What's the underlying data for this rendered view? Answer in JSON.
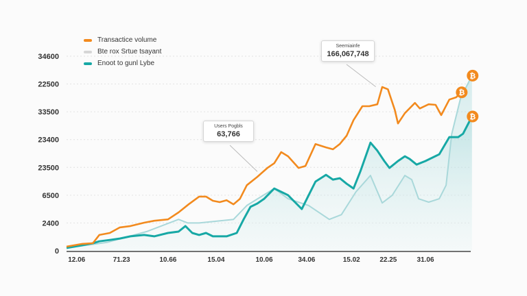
{
  "chart_data": {
    "type": "line",
    "title": "",
    "xlabel": "",
    "ylabel": "",
    "xlim": [
      0,
      100
    ],
    "ylim": [
      0,
      7
    ],
    "y_ticks": [
      {
        "level": 0,
        "label": "0"
      },
      {
        "level": 1,
        "label": "2400"
      },
      {
        "level": 2,
        "label": "6500"
      },
      {
        "level": 3,
        "label": "23500"
      },
      {
        "level": 4,
        "label": "23400"
      },
      {
        "level": 5,
        "label": "33500"
      },
      {
        "level": 6,
        "label": "22500"
      },
      {
        "level": 7,
        "label": "34600"
      }
    ],
    "x_ticks": [
      {
        "x": 2.5,
        "label": "12.06"
      },
      {
        "x": 13.6,
        "label": "71.23"
      },
      {
        "x": 25.1,
        "label": "10.66"
      },
      {
        "x": 37.0,
        "label": "15.04"
      },
      {
        "x": 48.9,
        "label": "10.06"
      },
      {
        "x": 59.4,
        "label": "34.06"
      },
      {
        "x": 70.5,
        "label": "15.02"
      },
      {
        "x": 79.6,
        "label": "22.25"
      },
      {
        "x": 88.8,
        "label": "31.06"
      }
    ],
    "grid": true,
    "legend_position": "top-left",
    "series": [
      {
        "name": "Transactice volume",
        "color": "#f28a1e",
        "points": [
          [
            0,
            0.15
          ],
          [
            3.9,
            0.25
          ],
          [
            6.5,
            0.27
          ],
          [
            8.1,
            0.57
          ],
          [
            10.7,
            0.64
          ],
          [
            13.2,
            0.84
          ],
          [
            15.8,
            0.89
          ],
          [
            19.2,
            1.01
          ],
          [
            21.7,
            1.08
          ],
          [
            25.1,
            1.13
          ],
          [
            27.7,
            1.38
          ],
          [
            30.2,
            1.67
          ],
          [
            32.8,
            1.95
          ],
          [
            34.5,
            1.95
          ],
          [
            36.2,
            1.8
          ],
          [
            37.9,
            1.75
          ],
          [
            39.6,
            1.82
          ],
          [
            41.3,
            1.67
          ],
          [
            42.9,
            1.87
          ],
          [
            44.6,
            2.36
          ],
          [
            47.2,
            2.66
          ],
          [
            49.7,
            2.98
          ],
          [
            51.4,
            3.15
          ],
          [
            53.1,
            3.55
          ],
          [
            54.8,
            3.4
          ],
          [
            57.4,
            2.98
          ],
          [
            59.1,
            3.05
          ],
          [
            61.6,
            3.84
          ],
          [
            64.2,
            3.72
          ],
          [
            65.9,
            3.65
          ],
          [
            67.6,
            3.84
          ],
          [
            69.3,
            4.14
          ],
          [
            71.0,
            4.7
          ],
          [
            73.2,
            5.2
          ],
          [
            74.9,
            5.2
          ],
          [
            76.9,
            5.27
          ],
          [
            78.1,
            5.89
          ],
          [
            79.5,
            5.81
          ],
          [
            81.2,
            5.07
          ],
          [
            82.0,
            4.58
          ],
          [
            83.7,
            4.95
          ],
          [
            86.2,
            5.32
          ],
          [
            87.4,
            5.12
          ],
          [
            89.6,
            5.27
          ],
          [
            91.3,
            5.25
          ],
          [
            92.7,
            4.88
          ],
          [
            94.7,
            5.44
          ],
          [
            96.4,
            5.52
          ],
          [
            97.6,
            5.7
          ]
        ]
      },
      {
        "name": "Bte rox Srtue tsayant",
        "color": "#a9d8da",
        "points": [
          [
            0,
            0.1
          ],
          [
            10,
            0.3
          ],
          [
            20,
            0.7
          ],
          [
            27.7,
            1.13
          ],
          [
            30,
            1.0
          ],
          [
            32.8,
            1.0
          ],
          [
            41.3,
            1.13
          ],
          [
            44.6,
            1.63
          ],
          [
            51.4,
            2.24
          ],
          [
            54.8,
            1.87
          ],
          [
            59.9,
            1.63
          ],
          [
            65,
            1.13
          ],
          [
            68,
            1.3
          ],
          [
            71.6,
            2.12
          ],
          [
            75.2,
            2.71
          ],
          [
            78.1,
            1.72
          ],
          [
            80.6,
            2.0
          ],
          [
            83.7,
            2.71
          ],
          [
            85.4,
            2.56
          ],
          [
            87.1,
            1.87
          ],
          [
            89.6,
            1.75
          ],
          [
            92.2,
            1.87
          ],
          [
            93.9,
            2.36
          ],
          [
            95.3,
            4.2
          ],
          [
            97.5,
            5.5
          ],
          [
            100.3,
            6.3
          ]
        ]
      },
      {
        "name": "Enoot to gunl Lybe",
        "color": "#17a8a5",
        "points": [
          [
            0,
            0.1
          ],
          [
            3.9,
            0.2
          ],
          [
            6.5,
            0.27
          ],
          [
            8.1,
            0.34
          ],
          [
            10.7,
            0.39
          ],
          [
            13.2,
            0.44
          ],
          [
            15.8,
            0.52
          ],
          [
            19.2,
            0.57
          ],
          [
            21.7,
            0.52
          ],
          [
            25.1,
            0.64
          ],
          [
            27.7,
            0.69
          ],
          [
            29.4,
            0.89
          ],
          [
            31.1,
            0.64
          ],
          [
            32.8,
            0.57
          ],
          [
            34.5,
            0.64
          ],
          [
            36.2,
            0.52
          ],
          [
            39.6,
            0.52
          ],
          [
            42.1,
            0.64
          ],
          [
            43.8,
            1.13
          ],
          [
            45.5,
            1.58
          ],
          [
            47.2,
            1.7
          ],
          [
            48.9,
            1.87
          ],
          [
            51.4,
            2.24
          ],
          [
            53.1,
            2.12
          ],
          [
            54.8,
            2.0
          ],
          [
            56.5,
            1.75
          ],
          [
            58.2,
            1.5
          ],
          [
            59.9,
            2.0
          ],
          [
            61.6,
            2.49
          ],
          [
            64.2,
            2.73
          ],
          [
            65.9,
            2.56
          ],
          [
            67.6,
            2.61
          ],
          [
            69.3,
            2.41
          ],
          [
            71.0,
            2.24
          ],
          [
            72.7,
            2.86
          ],
          [
            75.2,
            3.89
          ],
          [
            76.9,
            3.6
          ],
          [
            78.6,
            3.23
          ],
          [
            79.9,
            2.98
          ],
          [
            82.0,
            3.23
          ],
          [
            83.7,
            3.4
          ],
          [
            84.9,
            3.3
          ],
          [
            86.6,
            3.1
          ],
          [
            88.8,
            3.23
          ],
          [
            92.2,
            3.47
          ],
          [
            94.7,
            4.09
          ],
          [
            96.9,
            4.09
          ],
          [
            98.1,
            4.21
          ],
          [
            100.3,
            4.83
          ]
        ]
      }
    ],
    "annotations": [
      {
        "title": "Users Pogbls",
        "value": "63,766",
        "target": [
          47.2,
          2.85
        ]
      },
      {
        "title": "Seemiainfe",
        "value": "166,067,748",
        "target": [
          76.5,
          5.9
        ]
      }
    ],
    "end_markers": {
      "icon": "bitcoin-icon",
      "symbol": "₿",
      "color": "#f28a1e"
    }
  }
}
